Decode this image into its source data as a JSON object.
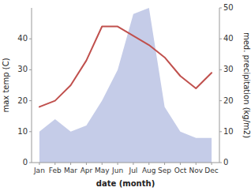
{
  "chart_data": {
    "type": "line",
    "xlabel": "date (month)",
    "ylabel": "max temp (C)",
    "y2label": "med. precipitation (kg/m2)",
    "categories": [
      "Jan",
      "Feb",
      "Mar",
      "Apr",
      "May",
      "Jun",
      "Jul",
      "Aug",
      "Sep",
      "Oct",
      "Nov",
      "Dec"
    ],
    "series": [
      {
        "type": "area",
        "color": "#c5cce8",
        "axis": "y2",
        "values": [
          10,
          14,
          10,
          12,
          20,
          30,
          48,
          50,
          18,
          10,
          8,
          8
        ]
      },
      {
        "type": "line",
        "color": "#c0504d",
        "values": [
          18,
          20,
          25,
          33,
          44,
          44,
          41,
          38,
          34,
          28,
          24,
          29
        ]
      }
    ],
    "ylim": [
      0,
      50
    ],
    "yticks": [
      0,
      10,
      20,
      30,
      40
    ],
    "y2lim": [
      0,
      50
    ],
    "y2ticks": [
      0,
      10,
      20,
      30,
      40,
      50
    ],
    "grid": false
  }
}
